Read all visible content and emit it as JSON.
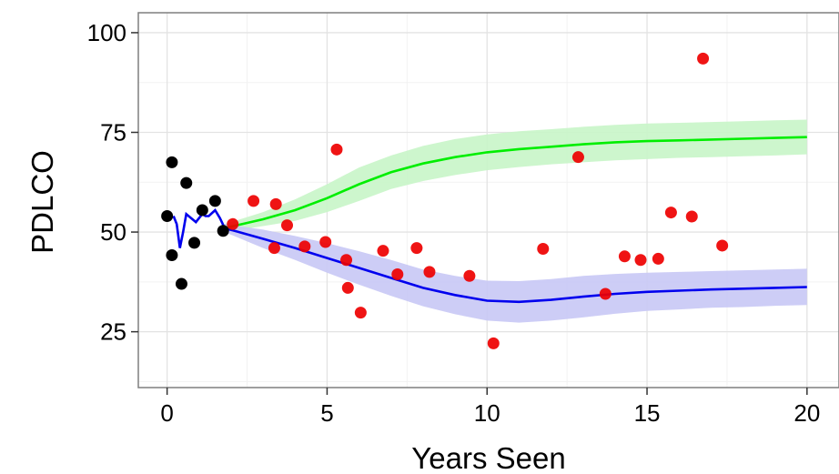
{
  "chart_data": {
    "type": "scatter",
    "xlabel": "Years Seen",
    "ylabel": "PDLCO",
    "xlim": [
      -0.9,
      21
    ],
    "ylim": [
      11,
      105
    ],
    "xticks": [
      0,
      5,
      10,
      15,
      20
    ],
    "yticks": [
      25,
      50,
      75,
      100
    ],
    "grid": true,
    "colors": {
      "early_points": "#000000",
      "later_points": "#ee0000",
      "upper_line": "#00ee00",
      "upper_band": "#c8f5c8",
      "lower_line": "#0000ee",
      "lower_band": "#c8c8f5"
    },
    "early_points": [
      {
        "x": 0.0,
        "y": 54
      },
      {
        "x": 0.15,
        "y": 67.5
      },
      {
        "x": 0.15,
        "y": 44.2
      },
      {
        "x": 0.45,
        "y": 37
      },
      {
        "x": 0.6,
        "y": 62.3
      },
      {
        "x": 0.85,
        "y": 47.3
      },
      {
        "x": 1.1,
        "y": 55.5
      },
      {
        "x": 1.5,
        "y": 57.8
      },
      {
        "x": 1.75,
        "y": 50.3
      }
    ],
    "later_points": [
      {
        "x": 2.05,
        "y": 52
      },
      {
        "x": 2.7,
        "y": 57.8
      },
      {
        "x": 3.35,
        "y": 46
      },
      {
        "x": 3.4,
        "y": 57
      },
      {
        "x": 3.75,
        "y": 51.7
      },
      {
        "x": 4.3,
        "y": 46.4
      },
      {
        "x": 4.95,
        "y": 47.5
      },
      {
        "x": 5.3,
        "y": 70.7
      },
      {
        "x": 5.6,
        "y": 43
      },
      {
        "x": 5.65,
        "y": 36
      },
      {
        "x": 6.05,
        "y": 29.8
      },
      {
        "x": 6.75,
        "y": 45.3
      },
      {
        "x": 7.2,
        "y": 39.4
      },
      {
        "x": 7.8,
        "y": 46
      },
      {
        "x": 8.2,
        "y": 40
      },
      {
        "x": 9.45,
        "y": 39
      },
      {
        "x": 10.2,
        "y": 22.1
      },
      {
        "x": 11.75,
        "y": 45.8
      },
      {
        "x": 12.85,
        "y": 68.8
      },
      {
        "x": 13.7,
        "y": 34.5
      },
      {
        "x": 14.3,
        "y": 43.9
      },
      {
        "x": 14.8,
        "y": 43
      },
      {
        "x": 15.35,
        "y": 43.3
      },
      {
        "x": 15.75,
        "y": 54.9
      },
      {
        "x": 16.4,
        "y": 53.9
      },
      {
        "x": 16.75,
        "y": 93.5
      },
      {
        "x": 17.35,
        "y": 46.6
      }
    ],
    "early_fit": {
      "x": [
        0.2,
        0.3,
        0.4,
        0.5,
        0.6,
        0.75,
        0.9,
        1.0,
        1.1,
        1.2,
        1.3,
        1.5,
        1.65,
        1.8
      ],
      "y": [
        54,
        52,
        46,
        50,
        54.5,
        53.5,
        52.5,
        53.5,
        54.5,
        54,
        54,
        55.5,
        53.5,
        51
      ]
    },
    "upper_fit": {
      "x": [
        1.8,
        3,
        4,
        5,
        6,
        7,
        8,
        9,
        10,
        11,
        12,
        13,
        14,
        15,
        16,
        17,
        18,
        19,
        20
      ],
      "y": [
        51,
        53.2,
        55.5,
        58.5,
        62,
        65,
        67.2,
        68.8,
        70,
        70.8,
        71.4,
        72,
        72.5,
        72.8,
        73,
        73.2,
        73.4,
        73.6,
        73.8
      ],
      "lower": [
        50,
        51.5,
        52.8,
        55,
        57.8,
        60.8,
        62.8,
        64.3,
        65.5,
        66.3,
        67,
        67.5,
        68,
        68.3,
        68.6,
        68.8,
        69,
        69.2,
        69.5
      ],
      "upper": [
        52,
        55,
        58.2,
        62,
        66.2,
        69.2,
        71.6,
        73.3,
        74.5,
        75.3,
        75.8,
        76.4,
        76.9,
        77.2,
        77.4,
        77.6,
        77.8,
        78,
        78.2
      ]
    },
    "lower_fit": {
      "x": [
        1.8,
        3,
        4,
        5,
        6,
        7,
        8,
        9,
        10,
        11,
        12,
        13,
        14,
        15,
        16,
        17,
        18,
        19,
        20
      ],
      "y": [
        51,
        48.3,
        46,
        43.5,
        41,
        38.5,
        36,
        34.2,
        32.8,
        32.5,
        33,
        33.8,
        34.5,
        35,
        35.3,
        35.6,
        35.8,
        36,
        36.2
      ],
      "lower": [
        50,
        46,
        43,
        39.8,
        36.8,
        34,
        31.4,
        29.4,
        27.8,
        27.3,
        27.8,
        28.6,
        29.5,
        30.2,
        30.6,
        31,
        31.2,
        31.5,
        31.7
      ],
      "upper": [
        52,
        50.6,
        49,
        47.2,
        45.2,
        43,
        40.6,
        39,
        37.8,
        37.7,
        38.2,
        39,
        39.5,
        39.8,
        40,
        40.2,
        40.4,
        40.6,
        40.8
      ]
    }
  }
}
